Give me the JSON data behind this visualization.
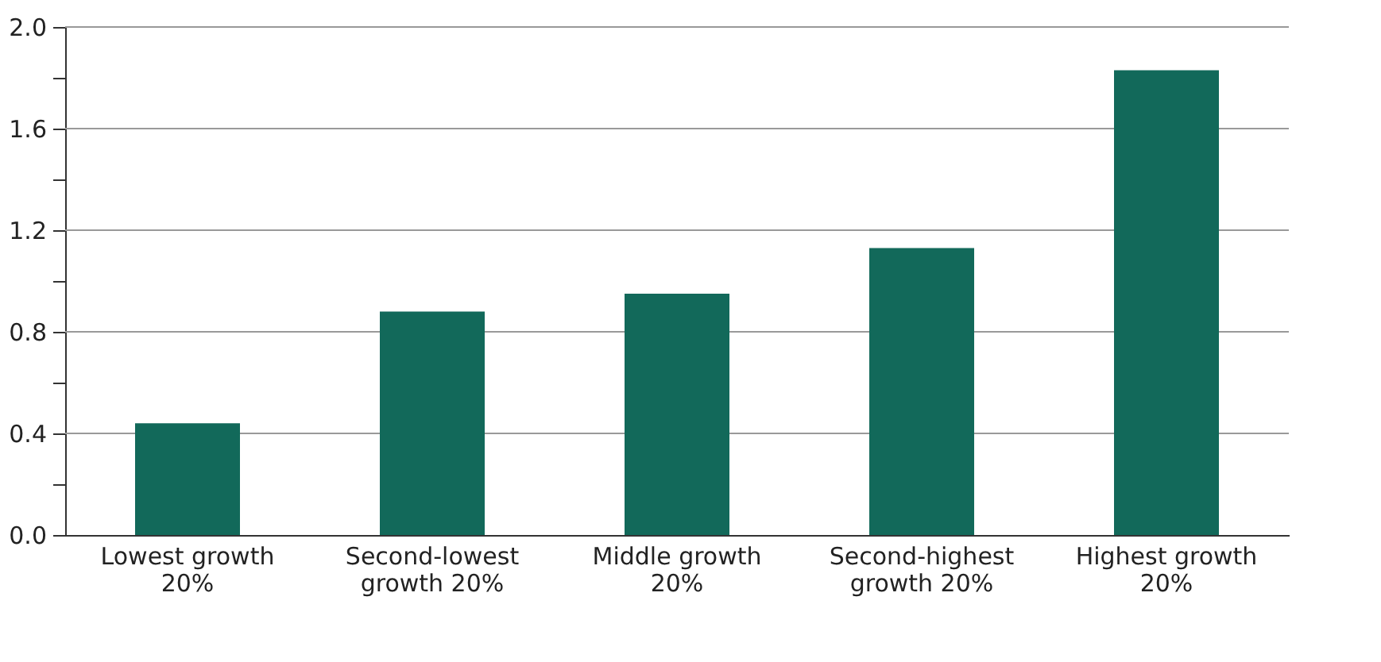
{
  "chart_data": {
    "type": "bar",
    "categories": [
      "Lowest growth 20%",
      "Second-lowest growth 20%",
      "Middle growth 20%",
      "Second-highest growth 20%",
      "Highest growth 20%"
    ],
    "values": [
      0.44,
      0.88,
      0.95,
      1.13,
      1.83
    ],
    "color": "#12695a",
    "ylim": [
      0,
      2.0
    ],
    "yticks": [
      {
        "value": 0,
        "label": "0.0"
      },
      {
        "value": 0.2,
        "label": null
      },
      {
        "value": 0.4,
        "label": "0.4"
      },
      {
        "value": 0.6,
        "label": null
      },
      {
        "value": 0.8,
        "label": "0.8"
      },
      {
        "value": 1.0,
        "label": null
      },
      {
        "value": 1.2,
        "label": "1.2"
      },
      {
        "value": 1.4,
        "label": null
      },
      {
        "value": 1.6,
        "label": "1.6"
      },
      {
        "value": 1.8,
        "label": null
      },
      {
        "value": 2.0,
        "label": "2.0"
      }
    ],
    "grid": "y"
  }
}
